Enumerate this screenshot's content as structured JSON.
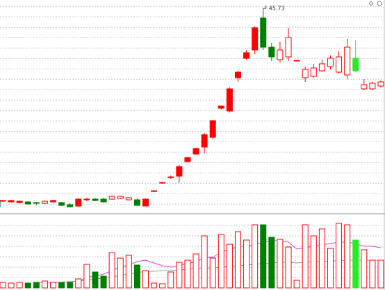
{
  "chart_data": {
    "type": "candlestick",
    "open": [
      17.93,
      17.83,
      17.73,
      17.83,
      17.73,
      17.63,
      17.83,
      17.73,
      17.43,
      17.23,
      18.13,
      18.23,
      18.23,
      18.23,
      18.33,
      18.13,
      18.13,
      17.23,
      19.33,
      20.53,
      21.33,
      21.53,
      23.63,
      24.73,
      25.73,
      27.13,
      31.33,
      30.93,
      35.73,
      38.53,
      39.73,
      44.33,
      40.13,
      38.33,
      38.73,
      38.13,
      35.73,
      35.93,
      36.73,
      37.33,
      36.53,
      36.13,
      38.53,
      34.13,
      34.13,
      34.53
    ],
    "high": [
      18.13,
      18.13,
      18.03,
      17.93,
      17.83,
      18.03,
      18.13,
      17.83,
      17.63,
      18.33,
      18.43,
      18.43,
      18.43,
      18.73,
      18.73,
      18.53,
      18.33,
      18.33,
      19.43,
      20.63,
      21.63,
      23.13,
      24.33,
      25.63,
      27.73,
      29.63,
      31.73,
      34.33,
      36.73,
      39.73,
      43.13,
      45.73,
      40.73,
      40.93,
      42.93,
      38.23,
      37.33,
      37.73,
      38.33,
      38.93,
      39.53,
      41.33,
      41.13,
      35.53,
      35.13,
      35.33
    ],
    "low": [
      17.83,
      17.73,
      17.63,
      17.43,
      17.33,
      17.53,
      17.73,
      17.23,
      17.03,
      17.13,
      17.93,
      17.93,
      17.73,
      18.13,
      18.23,
      18.03,
      17.23,
      17.23,
      19.23,
      20.43,
      21.13,
      20.63,
      23.53,
      24.63,
      24.83,
      26.93,
      31.13,
      30.73,
      35.13,
      38.33,
      39.13,
      39.73,
      38.13,
      37.93,
      38.13,
      38.13,
      35.13,
      35.73,
      36.53,
      36.93,
      36.33,
      35.53,
      36.53,
      33.93,
      33.93,
      34.33
    ],
    "close": [
      18.03,
      18.03,
      17.93,
      17.53,
      17.63,
      17.93,
      18.03,
      17.33,
      17.13,
      18.23,
      18.23,
      18.03,
      17.83,
      18.63,
      18.63,
      18.43,
      17.33,
      18.23,
      19.43,
      20.63,
      21.43,
      22.93,
      24.23,
      25.53,
      27.53,
      29.53,
      31.63,
      34.13,
      36.53,
      39.33,
      42.93,
      40.13,
      38.73,
      39.73,
      41.53,
      38.23,
      36.93,
      37.13,
      37.73,
      38.53,
      38.73,
      40.13,
      36.73,
      34.73,
      34.93,
      35.13
    ],
    "fills": [
      "#ff0000",
      "#ff0000",
      "#ff0000",
      "#008000",
      "#008000",
      "#ffffff",
      "#ff0000",
      "#008000",
      "#008000",
      "#ff0000",
      "#ff0000",
      "#008000",
      "#008000",
      "#ffffff",
      "#ffffff",
      "#ffffff",
      "#008000",
      "#ff0000",
      "#ff0000",
      "#ff0000",
      "#ff0000",
      "#ff0000",
      "#ff0000",
      "#ff0000",
      "#ff0000",
      "#ff0000",
      "#ff0000",
      "#ff0000",
      "#ff0000",
      "#ff0000",
      "#ff0000",
      "#008000",
      "#008000",
      "#ffffff",
      "#ffffff",
      "#ffffff",
      "#ffffff",
      "#ffffff",
      "#ffffff",
      "#ffffff",
      "#ffffff",
      "#ffffff",
      "#22ee22",
      "#ffffff",
      "#ffffff",
      "#ffffff"
    ],
    "up_color": "#ff0000",
    "volume": [
      8,
      7,
      8,
      7,
      8,
      10,
      8,
      8,
      8,
      13,
      34,
      23,
      17,
      51,
      43,
      47,
      33,
      25,
      7,
      6,
      23,
      37,
      40,
      49,
      75,
      43,
      77,
      63,
      81,
      69,
      91,
      91,
      73,
      70,
      59,
      11,
      91,
      75,
      85,
      57,
      93,
      91,
      69,
      55,
      40,
      40
    ],
    "volume_ma": [
      {
        "color": "#e040e0",
        "values": [
          null,
          null,
          null,
          null,
          8,
          8,
          8,
          8,
          9,
          10,
          15,
          17,
          20,
          25,
          30,
          33,
          38,
          40,
          36,
          32,
          30,
          32,
          36,
          37,
          44,
          44,
          52,
          55,
          60,
          60,
          62,
          66,
          68,
          68,
          66,
          56,
          58,
          60,
          62,
          64,
          66,
          66,
          64,
          60,
          60,
          58
        ]
      },
      {
        "color": "#999999",
        "values": [
          null,
          null,
          null,
          null,
          null,
          null,
          null,
          null,
          null,
          10,
          11,
          13,
          14,
          16,
          18,
          20,
          22,
          24,
          24,
          25,
          25,
          26,
          27,
          28,
          28,
          29,
          30,
          31,
          32,
          33,
          34,
          35,
          36,
          37,
          37,
          36,
          37,
          38,
          38,
          39,
          39,
          40,
          40,
          40,
          40,
          40
        ]
      }
    ],
    "ylim": [
      16.43,
      46.43
    ],
    "yticks": [
      17.5,
      19,
      20.5,
      22,
      23.5,
      25,
      26.5,
      28,
      29.5,
      31,
      32.5,
      34,
      35.5,
      37,
      38.5,
      40,
      41.5,
      43,
      44.5,
      46
    ],
    "vol_ylim": [
      0,
      100
    ],
    "vol_yticks": [
      15,
      30,
      45,
      60,
      75,
      90
    ],
    "grid": true
  }
}
